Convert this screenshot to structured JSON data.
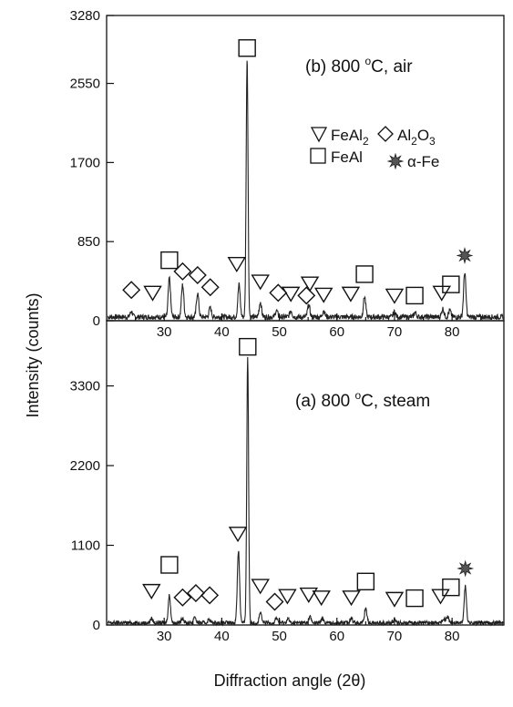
{
  "chart_data": {
    "type": "line",
    "xlabel": "Diffraction angle (2θ)",
    "ylabel": "Intensity (counts)",
    "xlim": [
      20,
      89
    ],
    "x_ticks": [
      30,
      40,
      50,
      60,
      70,
      80
    ],
    "grid": false,
    "legend": {
      "placement": "upper panel, right",
      "entries": [
        {
          "marker": "triangle-down",
          "name": "FeAl",
          "sub": "2"
        },
        {
          "marker": "diamond",
          "name": "Al",
          "sub": "2",
          "name2": "O",
          "sub2": "3"
        },
        {
          "marker": "square",
          "name": "FeAl",
          "sub": "",
          "note": "FeAl"
        },
        {
          "marker": "star",
          "name": "α-Fe"
        }
      ]
    },
    "panels": [
      {
        "id": "b",
        "label": "(b) 800 °C, air",
        "label_prefix": "(b) 800 ",
        "label_sup": "o",
        "label_suffix": "C, air",
        "ylim": [
          0,
          3280
        ],
        "y_ticks": [
          0,
          850,
          1700,
          2550,
          3280
        ],
        "baseline": 40,
        "peaks": [
          {
            "x": 24.3,
            "y": 60
          },
          {
            "x": 30.9,
            "y": 420
          },
          {
            "x": 33.2,
            "y": 350
          },
          {
            "x": 35.8,
            "y": 260
          },
          {
            "x": 38.0,
            "y": 100
          },
          {
            "x": 43.0,
            "y": 350
          },
          {
            "x": 44.4,
            "y": 2800
          },
          {
            "x": 46.7,
            "y": 160
          },
          {
            "x": 49.5,
            "y": 70
          },
          {
            "x": 52.0,
            "y": 70
          },
          {
            "x": 55.1,
            "y": 130
          },
          {
            "x": 57.7,
            "y": 70
          },
          {
            "x": 64.8,
            "y": 220
          },
          {
            "x": 70.0,
            "y": 60
          },
          {
            "x": 73.6,
            "y": 50
          },
          {
            "x": 78.4,
            "y": 90
          },
          {
            "x": 79.6,
            "y": 70
          },
          {
            "x": 82.2,
            "y": 480
          }
        ],
        "markers": [
          {
            "type": "diamond",
            "x": 24.3,
            "y": 330
          },
          {
            "type": "triangle-down",
            "x": 28.0,
            "y": 300
          },
          {
            "type": "square",
            "x": 30.9,
            "y": 650
          },
          {
            "type": "diamond",
            "x": 33.2,
            "y": 530
          },
          {
            "type": "diamond",
            "x": 35.8,
            "y": 490
          },
          {
            "type": "diamond",
            "x": 38.0,
            "y": 360
          },
          {
            "type": "triangle-down",
            "x": 42.6,
            "y": 610
          },
          {
            "type": "square",
            "x": 44.4,
            "y": 2930
          },
          {
            "type": "triangle-down",
            "x": 46.7,
            "y": 420
          },
          {
            "type": "diamond",
            "x": 49.8,
            "y": 300
          },
          {
            "type": "triangle-down",
            "x": 52.0,
            "y": 290
          },
          {
            "type": "diamond",
            "x": 54.7,
            "y": 270
          },
          {
            "type": "triangle-down",
            "x": 55.3,
            "y": 400
          },
          {
            "type": "triangle-down",
            "x": 57.7,
            "y": 280
          },
          {
            "type": "triangle-down",
            "x": 62.4,
            "y": 290
          },
          {
            "type": "square",
            "x": 64.8,
            "y": 500
          },
          {
            "type": "triangle-down",
            "x": 70.0,
            "y": 270
          },
          {
            "type": "square",
            "x": 73.5,
            "y": 270
          },
          {
            "type": "triangle-down",
            "x": 78.2,
            "y": 300
          },
          {
            "type": "square",
            "x": 79.8,
            "y": 390
          },
          {
            "type": "star",
            "x": 82.2,
            "y": 700
          }
        ]
      },
      {
        "id": "a",
        "label": "(a) 800 °C, steam",
        "label_prefix": "(a) 800 ",
        "label_sup": "o",
        "label_suffix": "C, steam",
        "ylim": [
          0,
          4200
        ],
        "y_ticks": [
          0,
          1100,
          2200,
          3300
        ],
        "baseline": 30,
        "peaks": [
          {
            "x": 27.8,
            "y": 60
          },
          {
            "x": 30.9,
            "y": 380
          },
          {
            "x": 33.2,
            "y": 70
          },
          {
            "x": 35.3,
            "y": 90
          },
          {
            "x": 37.8,
            "y": 50
          },
          {
            "x": 42.9,
            "y": 1000
          },
          {
            "x": 44.5,
            "y": 3680
          },
          {
            "x": 46.7,
            "y": 140
          },
          {
            "x": 49.5,
            "y": 70
          },
          {
            "x": 51.5,
            "y": 60
          },
          {
            "x": 55.3,
            "y": 90
          },
          {
            "x": 57.5,
            "y": 60
          },
          {
            "x": 62.5,
            "y": 80
          },
          {
            "x": 65.0,
            "y": 210
          },
          {
            "x": 70.0,
            "y": 50
          },
          {
            "x": 78.5,
            "y": 70
          },
          {
            "x": 79.2,
            "y": 90
          },
          {
            "x": 82.3,
            "y": 500
          }
        ],
        "markers": [
          {
            "type": "triangle-down",
            "x": 27.8,
            "y": 470
          },
          {
            "type": "square",
            "x": 30.9,
            "y": 830
          },
          {
            "type": "diamond",
            "x": 33.2,
            "y": 380
          },
          {
            "type": "diamond",
            "x": 35.5,
            "y": 440
          },
          {
            "type": "diamond",
            "x": 37.9,
            "y": 410
          },
          {
            "type": "triangle-down",
            "x": 42.8,
            "y": 1260
          },
          {
            "type": "square",
            "x": 44.5,
            "y": 3840
          },
          {
            "type": "triangle-down",
            "x": 46.7,
            "y": 540
          },
          {
            "type": "diamond",
            "x": 49.2,
            "y": 320
          },
          {
            "type": "triangle-down",
            "x": 51.4,
            "y": 400
          },
          {
            "type": "triangle-down",
            "x": 55.1,
            "y": 420
          },
          {
            "type": "triangle-down",
            "x": 57.3,
            "y": 380
          },
          {
            "type": "triangle-down",
            "x": 62.5,
            "y": 380
          },
          {
            "type": "square",
            "x": 65.0,
            "y": 600
          },
          {
            "type": "triangle-down",
            "x": 70.0,
            "y": 360
          },
          {
            "type": "square",
            "x": 73.5,
            "y": 370
          },
          {
            "type": "triangle-down",
            "x": 78.0,
            "y": 400
          },
          {
            "type": "square",
            "x": 79.8,
            "y": 520
          },
          {
            "type": "star",
            "x": 82.3,
            "y": 780
          }
        ]
      }
    ]
  }
}
